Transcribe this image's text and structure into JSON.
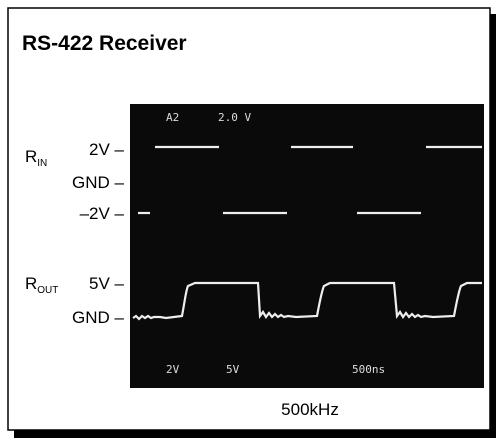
{
  "title": "RS-422 Receiver",
  "labels": {
    "r_in": {
      "main": "R",
      "sub": "IN"
    },
    "in_high": "2V –",
    "in_gnd": "GND –",
    "in_low": "–2V –",
    "r_out": {
      "main": "R",
      "sub": "OUT"
    },
    "out_high": "5V –",
    "out_gnd": "GND –"
  },
  "scope": {
    "channel": "A2",
    "scale": "2.0 V",
    "ch1_scale": "2V",
    "ch2_scale": "5V",
    "timebase": "500ns"
  },
  "caption": "500kHz"
}
